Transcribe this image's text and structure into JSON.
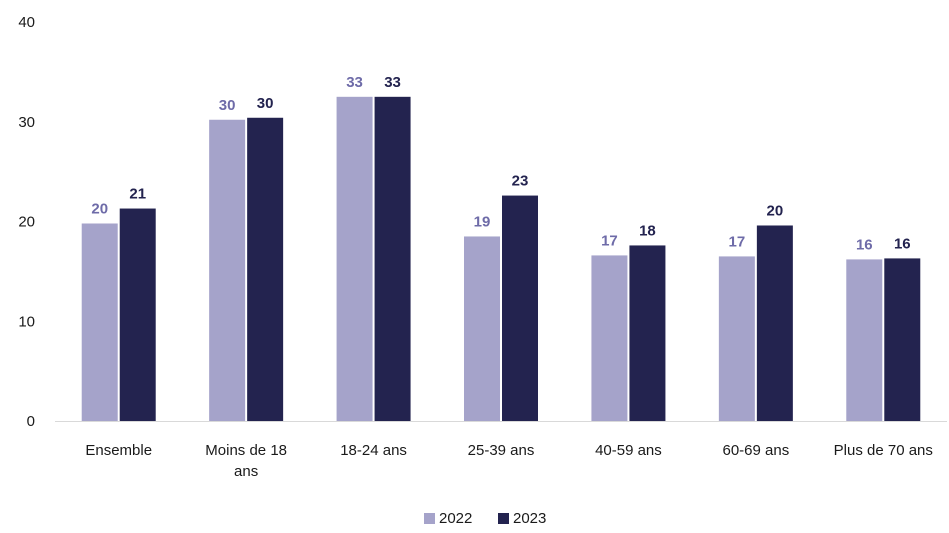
{
  "chart_data": {
    "type": "bar",
    "categories": [
      [
        "Ensemble"
      ],
      [
        "Moins de 18",
        "ans"
      ],
      [
        "18-24 ans"
      ],
      [
        "25-39 ans"
      ],
      [
        "40-59 ans"
      ],
      [
        "60-69 ans"
      ],
      [
        "Plus de 70 ans"
      ]
    ],
    "series": [
      {
        "name": "2022",
        "color": "#a5a3ca",
        "label_color": "#6e6ba8",
        "values": [
          19.8,
          30.2,
          32.5,
          18.5,
          16.6,
          16.5,
          16.2
        ],
        "labels": [
          "20",
          "30",
          "33",
          "19",
          "17",
          "17",
          "16"
        ]
      },
      {
        "name": "2023",
        "color": "#23234f",
        "label_color": "#23234f",
        "values": [
          21.3,
          30.4,
          32.5,
          22.6,
          17.6,
          19.6,
          16.3
        ],
        "labels": [
          "21",
          "30",
          "33",
          "23",
          "18",
          "20",
          "16"
        ]
      }
    ],
    "yticks": [
      0,
      10,
      20,
      30,
      40
    ],
    "ylim": [
      0,
      40
    ],
    "grid": false,
    "legend": "bottom-center"
  }
}
